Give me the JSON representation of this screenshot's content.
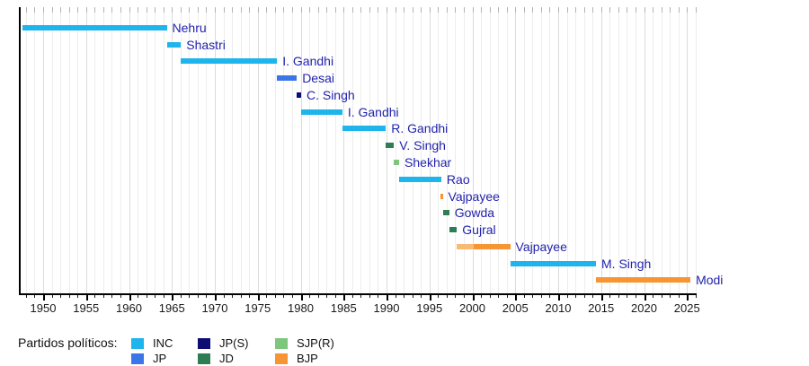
{
  "chart_data": {
    "type": "bar",
    "variant": "horizontal-timeline-gantt",
    "title": "",
    "xlabel": "",
    "ylabel": "",
    "x_axis": {
      "min": 1947.2,
      "max": 2026,
      "minor_tick_step": 1,
      "major_tick_step": 5,
      "major_ticks": [
        1950,
        1955,
        1960,
        1965,
        1970,
        1975,
        1980,
        1985,
        1990,
        1995,
        2000,
        2005,
        2010,
        2015,
        2020,
        2025
      ],
      "major_tick_labels": [
        "1950",
        "1955",
        "1960",
        "1965",
        "1970",
        "1975",
        "1980",
        "1985",
        "1990",
        "1995",
        "2000",
        "2005",
        "2010",
        "2015",
        "2020",
        "2025"
      ],
      "grid": "on"
    },
    "label_color": "#2222ae",
    "parties": {
      "INC": "#1eb4ec",
      "JP": "#3b76e8",
      "JP(S)": "#0d0d72",
      "JD": "#2f7d55",
      "SJP(R)": "#7cc77c",
      "BJP": "#f79433"
    },
    "rows": [
      {
        "label": "Nehru",
        "party": "INC",
        "start": 1947.6,
        "end": 1964.4
      },
      {
        "label": "Shastri",
        "party": "INC",
        "start": 1964.45,
        "end": 1966.05
      },
      {
        "label": "I. Gandhi",
        "party": "INC",
        "start": 1966.05,
        "end": 1977.25
      },
      {
        "label": "Desai",
        "party": "JP",
        "start": 1977.25,
        "end": 1979.55
      },
      {
        "label": "C. Singh",
        "party": "JP(S)",
        "start": 1979.55,
        "end": 1980.05
      },
      {
        "label": "I. Gandhi",
        "party": "INC",
        "start": 1980.05,
        "end": 1984.85
      },
      {
        "label": "R. Gandhi",
        "party": "INC",
        "start": 1984.85,
        "end": 1989.92
      },
      {
        "label": "V. Singh",
        "party": "JD",
        "start": 1989.92,
        "end": 1990.87
      },
      {
        "label": "Shekhar",
        "party": "SJP(R)",
        "start": 1990.87,
        "end": 1991.47
      },
      {
        "label": "Rao",
        "party": "INC",
        "start": 1991.47,
        "end": 1996.38
      },
      {
        "label": "Vajpayee",
        "party": "BJP",
        "start": 1996.3,
        "end": 1996.55
      },
      {
        "label": "Gowda",
        "party": "JD",
        "start": 1996.55,
        "end": 1997.3
      },
      {
        "label": "Gujral",
        "party": "JD",
        "start": 1997.3,
        "end": 1998.2
      },
      {
        "label": "Vajpayee",
        "party": "BJP",
        "start": 1998.2,
        "end": 2004.4,
        "segments": [
          {
            "start": 1998.2,
            "end": 2000.2,
            "color": "#f9bb72"
          },
          {
            "start": 2000.2,
            "end": 2004.4,
            "color": "#f79433"
          }
        ]
      },
      {
        "label": "M. Singh",
        "party": "INC",
        "start": 2004.4,
        "end": 2014.4
      },
      {
        "label": "Modi",
        "party": "BJP",
        "start": 2014.4,
        "end": 2025.4
      }
    ]
  },
  "legend": {
    "title": "Partidos políticos:",
    "items": [
      {
        "label": "INC",
        "color": "#1eb4ec"
      },
      {
        "label": "JP(S)",
        "color": "#0d0d72"
      },
      {
        "label": "SJP(R)",
        "color": "#7cc77c"
      },
      {
        "label": "JP",
        "color": "#3b76e8"
      },
      {
        "label": "JD",
        "color": "#2f7d55"
      },
      {
        "label": "BJP",
        "color": "#f79433"
      }
    ]
  }
}
